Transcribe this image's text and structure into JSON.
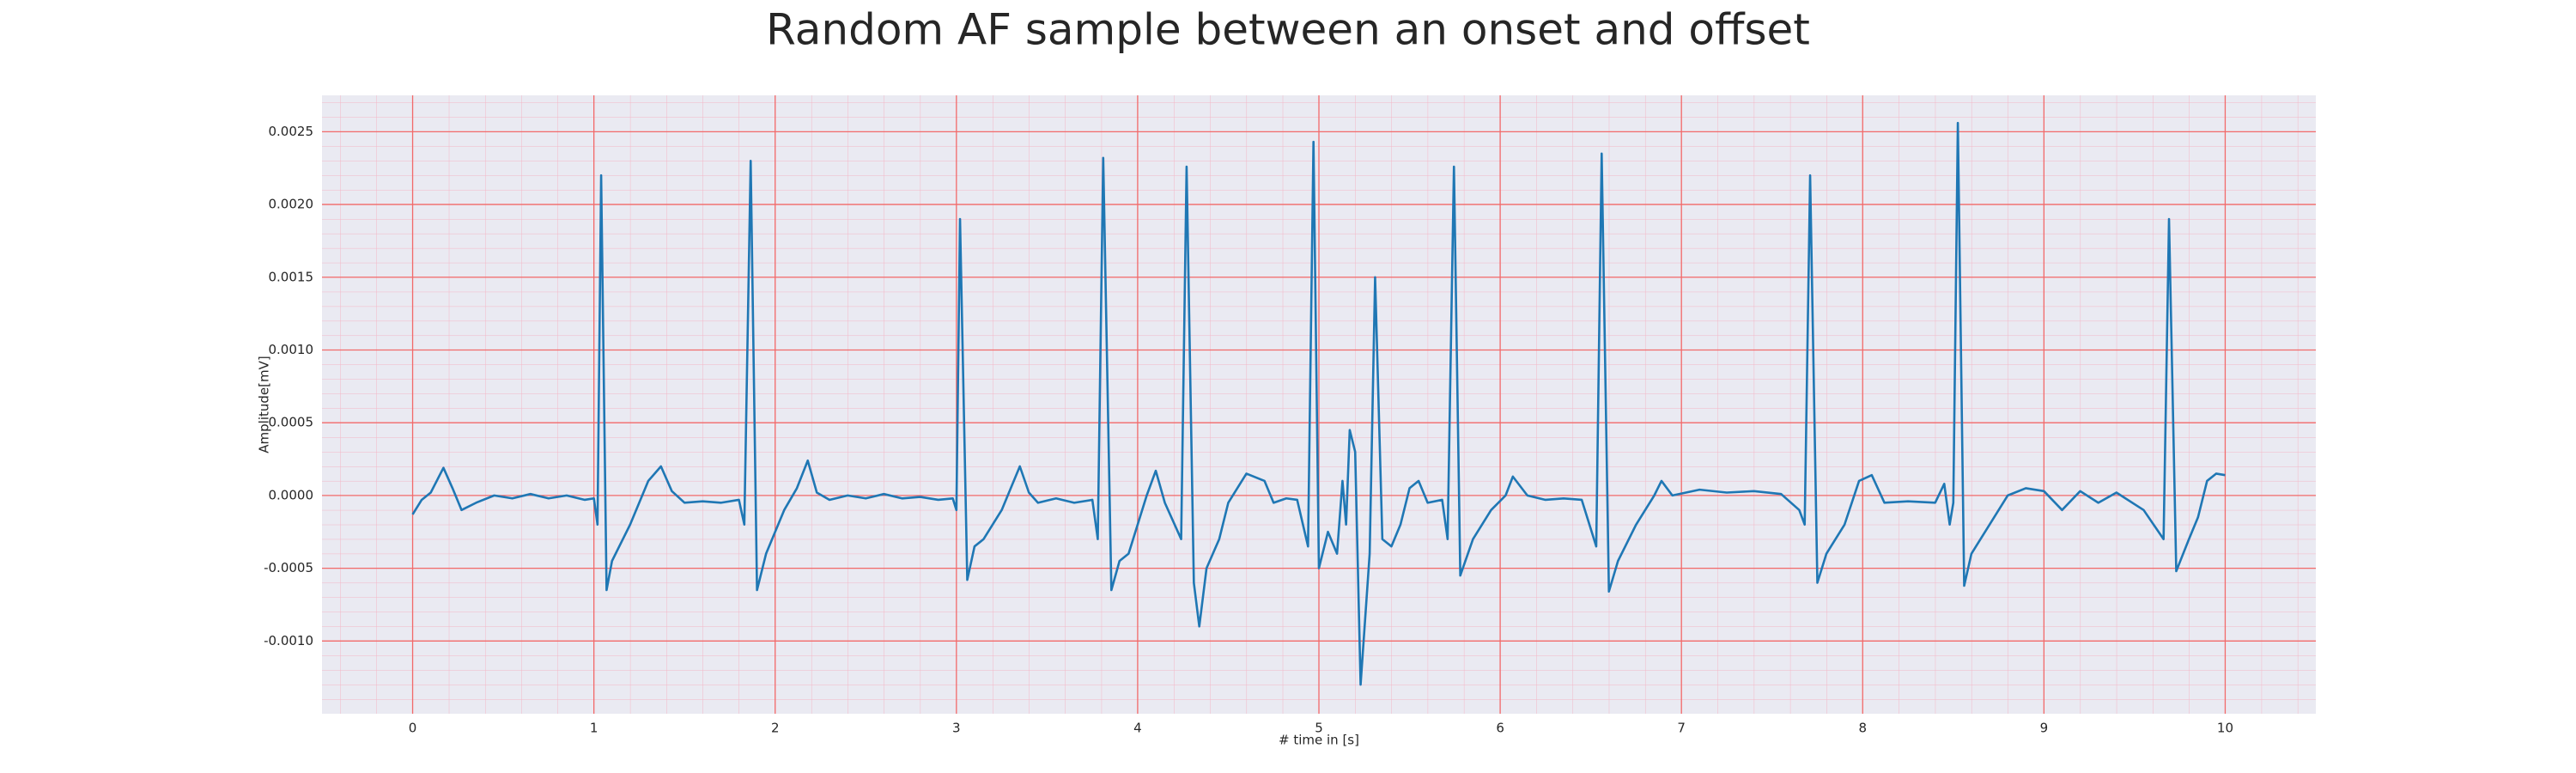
{
  "chart_data": {
    "type": "line",
    "title": "Random AF sample between an onset and offset",
    "xlabel": "# time in [s]",
    "ylabel": "Amplitude[mV]",
    "color": "#1f77b4",
    "grid": true,
    "minor_grid": true,
    "xlim": [
      -0.5,
      10.5
    ],
    "ylim": [
      -0.0015,
      0.00275
    ],
    "xticks": [
      0,
      1,
      2,
      3,
      4,
      5,
      6,
      7,
      8,
      9,
      10
    ],
    "yticks": [
      {
        "value": -0.001,
        "label": "-0.0010"
      },
      {
        "value": -0.0005,
        "label": "-0.0005"
      },
      {
        "value": 0,
        "label": "0.0000"
      },
      {
        "value": 0.0005,
        "label": "0.0005"
      },
      {
        "value": 0.001,
        "label": "0.0010"
      },
      {
        "value": 0.0015,
        "label": "0.0015"
      },
      {
        "value": 0.002,
        "label": "0.0020"
      },
      {
        "value": 0.0025,
        "label": "0.0025"
      }
    ],
    "x": [
      0,
      0.05,
      0.1,
      0.17,
      0.22,
      0.27,
      0.35,
      0.45,
      0.55,
      0.65,
      0.75,
      0.85,
      0.95,
      1.0,
      1.02,
      1.04,
      1.07,
      1.1,
      1.2,
      1.3,
      1.37,
      1.43,
      1.5,
      1.6,
      1.7,
      1.8,
      1.83,
      1.865,
      1.9,
      1.95,
      2.05,
      2.12,
      2.18,
      2.23,
      2.3,
      2.4,
      2.5,
      2.6,
      2.7,
      2.8,
      2.9,
      2.98,
      3.0,
      3.02,
      3.06,
      3.1,
      3.15,
      3.25,
      3.3,
      3.35,
      3.4,
      3.45,
      3.55,
      3.65,
      3.75,
      3.78,
      3.81,
      3.855,
      3.9,
      3.95,
      4.05,
      4.1,
      4.15,
      4.24,
      4.27,
      4.31,
      4.34,
      4.38,
      4.45,
      4.5,
      4.6,
      4.7,
      4.75,
      4.82,
      4.88,
      4.94,
      4.97,
      5.0,
      5.05,
      5.1,
      5.13,
      5.15,
      5.17,
      5.2,
      5.23,
      5.28,
      5.31,
      5.35,
      5.4,
      5.45,
      5.5,
      5.55,
      5.6,
      5.68,
      5.71,
      5.745,
      5.78,
      5.85,
      5.95,
      6.03,
      6.07,
      6.15,
      6.25,
      6.35,
      6.45,
      6.53,
      6.56,
      6.6,
      6.65,
      6.75,
      6.85,
      6.89,
      6.95,
      7.1,
      7.25,
      7.4,
      7.55,
      7.65,
      7.68,
      7.71,
      7.75,
      7.8,
      7.9,
      7.98,
      8.05,
      8.12,
      8.25,
      8.4,
      8.45,
      8.48,
      8.5,
      8.525,
      8.56,
      8.6,
      8.7,
      8.8,
      8.9,
      9.0,
      9.1,
      9.2,
      9.3,
      9.4,
      9.5,
      9.55,
      9.66,
      9.69,
      9.73,
      9.8,
      9.85,
      9.9,
      9.95,
      10.0
    ],
    "values": [
      -0.00013,
      -3e-05,
      2e-05,
      0.00019,
      5e-05,
      -0.0001,
      -5e-05,
      0,
      -2e-05,
      1e-05,
      -2e-05,
      0,
      -3e-05,
      -2e-05,
      -0.0002,
      0.0022,
      -0.00065,
      -0.00045,
      -0.0002,
      0.0001,
      0.0002,
      3e-05,
      -5e-05,
      -4e-05,
      -5e-05,
      -3e-05,
      -0.0002,
      0.0023,
      -0.00065,
      -0.0004,
      -0.0001,
      5e-05,
      0.00024,
      2e-05,
      -3e-05,
      0,
      -2e-05,
      1e-05,
      -2e-05,
      -1e-05,
      -3e-05,
      -2e-05,
      -0.0001,
      0.0019,
      -0.00058,
      -0.00035,
      -0.0003,
      -0.0001,
      5e-05,
      0.0002,
      2e-05,
      -5e-05,
      -2e-05,
      -5e-05,
      -3e-05,
      -0.0003,
      0.00232,
      -0.00065,
      -0.00045,
      -0.0004,
      0,
      0.00017,
      -5e-05,
      -0.0003,
      0.00226,
      -0.0006,
      -0.0009,
      -0.0005,
      -0.0003,
      -5e-05,
      0.00015,
      0.0001,
      -5e-05,
      -2e-05,
      -3e-05,
      -0.00035,
      0.00243,
      -0.0005,
      -0.00025,
      -0.0004,
      0.0001,
      -0.0002,
      0.00045,
      0.0003,
      -0.0013,
      -0.0004,
      0.0015,
      -0.0003,
      -0.00035,
      -0.0002,
      5e-05,
      0.0001,
      -5e-05,
      -3e-05,
      -0.0003,
      0.00226,
      -0.00055,
      -0.0003,
      -0.0001,
      0,
      0.00013,
      0,
      -3e-05,
      -2e-05,
      -3e-05,
      -0.00035,
      0.00235,
      -0.00066,
      -0.00045,
      -0.0002,
      0,
      0.0001,
      0,
      4e-05,
      2e-05,
      3e-05,
      1e-05,
      -0.0001,
      -0.0002,
      0.0022,
      -0.0006,
      -0.0004,
      -0.0002,
      0.0001,
      0.00014,
      -5e-05,
      -4e-05,
      -5e-05,
      8e-05,
      -0.0002,
      -5e-05,
      0.00256,
      -0.00062,
      -0.0004,
      -0.0002,
      0,
      5e-05,
      3e-05,
      -0.0001,
      3e-05,
      -5e-05,
      2e-05,
      -6e-05,
      -0.0001,
      -0.0003,
      0.0019,
      -0.00052,
      -0.0003,
      -0.00015,
      0.0001,
      0.00015,
      0.00014
    ]
  }
}
